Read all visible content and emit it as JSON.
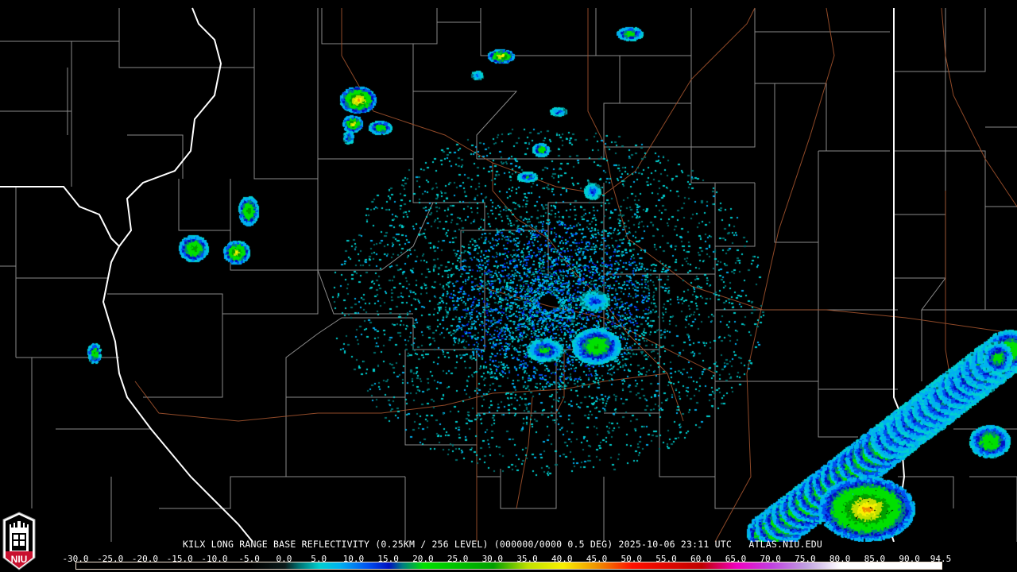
{
  "header": {
    "title": "KILX LONG RANGE BASE REFLECTIVITY (0.25KM / 256 LEVEL) (000000/0000 0.5 DEG) 2025-10-06 23:11 UTC   ATLAS.NIU.EDU"
  },
  "logo": {
    "text": "NIU",
    "icon": "niu-logo-icon",
    "color": "#c8102e"
  },
  "map": {
    "radar_site": "KILX",
    "colors": {
      "background": "#000000",
      "county_lines": "#8a8a8a",
      "state_lines": "#ffffff",
      "highways": "#a0522d"
    }
  },
  "legend": {
    "units_labels": [
      "-30.0",
      "-25.0",
      "-20.0",
      "-15.0",
      "-10.0",
      "-5.0",
      "0.0",
      "5.0",
      "10.0",
      "15.0",
      "20.0",
      "25.0",
      "30.0",
      "35.0",
      "40.0",
      "45.0",
      "50.0",
      "55.0",
      "60.0",
      "65.0",
      "70.0",
      "75.0",
      "80.0",
      "85.0",
      "90.0",
      "94.5"
    ],
    "min": -30,
    "max": 94.5,
    "color_stops": [
      {
        "value": -30,
        "color": "#000000"
      },
      {
        "value": -5,
        "color": "#000000"
      },
      {
        "value": 0,
        "color": "#0a1a1a"
      },
      {
        "value": 2,
        "color": "#007070"
      },
      {
        "value": 5,
        "color": "#00d0d0"
      },
      {
        "value": 8,
        "color": "#00b0f0"
      },
      {
        "value": 12,
        "color": "#0050f0"
      },
      {
        "value": 15,
        "color": "#0010c0"
      },
      {
        "value": 17,
        "color": "#008080"
      },
      {
        "value": 20,
        "color": "#00e000"
      },
      {
        "value": 30,
        "color": "#00a000"
      },
      {
        "value": 35,
        "color": "#c0e000"
      },
      {
        "value": 40,
        "color": "#f8f000"
      },
      {
        "value": 45,
        "color": "#f09000"
      },
      {
        "value": 50,
        "color": "#ff1000"
      },
      {
        "value": 60,
        "color": "#c00000"
      },
      {
        "value": 65,
        "color": "#f000c0"
      },
      {
        "value": 70,
        "color": "#c040e0"
      },
      {
        "value": 75,
        "color": "#c0a0e0"
      },
      {
        "value": 80,
        "color": "#ffffff"
      },
      {
        "value": 94.5,
        "color": "#ffffff"
      }
    ]
  }
}
